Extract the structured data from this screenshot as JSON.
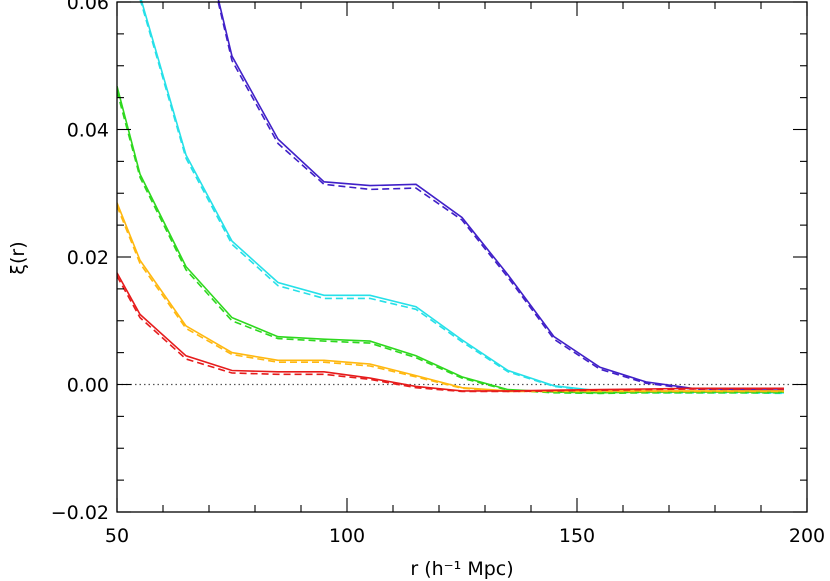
{
  "chart_data": {
    "type": "line",
    "xlabel": "r (h⁻¹ Mpc)",
    "ylabel": "ξ(r)",
    "xlim": [
      50,
      200
    ],
    "ylim": [
      -0.02,
      0.06
    ],
    "x_ticks": [
      50,
      100,
      150,
      200
    ],
    "x_tick_labels": [
      "50",
      "100",
      "150",
      "200"
    ],
    "y_ticks": [
      -0.02,
      0.0,
      0.02,
      0.04,
      0.06
    ],
    "y_tick_labels": [
      "−0.02",
      "0.00",
      "0.02",
      "0.04",
      "0.06"
    ],
    "grid": false,
    "zero_line": {
      "y": 0.0,
      "style": "dotted",
      "color": "#555555"
    },
    "series": [
      {
        "color": "#4020c8",
        "x": [
          72,
          75,
          85,
          95,
          105,
          115,
          125,
          135,
          145,
          155,
          165,
          175,
          185,
          195
        ],
        "solid": [
          0.0605,
          0.0515,
          0.0385,
          0.0318,
          0.0312,
          0.0314,
          0.0262,
          0.0172,
          0.0075,
          0.0027,
          0.0004,
          -0.0006,
          -0.0008,
          -0.0009
        ],
        "dashed": [
          0.06,
          0.0508,
          0.0378,
          0.0314,
          0.0306,
          0.0308,
          0.0258,
          0.0168,
          0.0071,
          0.0024,
          0.0002,
          -0.0007,
          -0.0009,
          -0.0011
        ]
      },
      {
        "color": "#26e0e8",
        "x": [
          55,
          65,
          75,
          85,
          95,
          105,
          115,
          125,
          135,
          145,
          155,
          165,
          175,
          185,
          195
        ],
        "solid": [
          0.061,
          0.036,
          0.0225,
          0.016,
          0.014,
          0.014,
          0.0122,
          0.007,
          0.0022,
          -0.0002,
          -0.001,
          -0.0012,
          -0.0012,
          -0.0012,
          -0.0013
        ],
        "dashed": [
          0.0605,
          0.0355,
          0.022,
          0.0155,
          0.0135,
          0.0135,
          0.0118,
          0.0067,
          0.002,
          -0.0003,
          -0.0011,
          -0.0013,
          -0.0013,
          -0.0013,
          -0.0014
        ]
      },
      {
        "color": "#2ed81e",
        "x": [
          50,
          55,
          65,
          75,
          85,
          95,
          105,
          115,
          125,
          135,
          145,
          155,
          165,
          175,
          185,
          195
        ],
        "solid": [
          0.0468,
          0.033,
          0.0185,
          0.0105,
          0.0075,
          0.0071,
          0.0068,
          0.0045,
          0.0012,
          -0.0008,
          -0.0012,
          -0.0013,
          -0.0012,
          -0.0012,
          -0.0012,
          -0.0012
        ],
        "dashed": [
          0.046,
          0.0325,
          0.018,
          0.01,
          0.0072,
          0.0068,
          0.0065,
          0.0042,
          0.001,
          -0.0009,
          -0.0013,
          -0.0014,
          -0.0013,
          -0.0013,
          -0.0013,
          -0.0013
        ]
      },
      {
        "color": "#ffb810",
        "x": [
          50,
          55,
          65,
          75,
          85,
          95,
          105,
          115,
          125,
          135,
          145,
          155,
          165,
          175,
          185,
          195
        ],
        "solid": [
          0.0285,
          0.0195,
          0.0092,
          0.005,
          0.0038,
          0.0038,
          0.0032,
          0.0014,
          -0.0005,
          -0.001,
          -0.001,
          -0.001,
          -0.001,
          -0.001,
          -0.001,
          -0.001
        ],
        "dashed": [
          0.028,
          0.019,
          0.0088,
          0.0047,
          0.0035,
          0.0035,
          0.0029,
          0.0012,
          -0.0006,
          -0.0011,
          -0.0011,
          -0.0011,
          -0.0011,
          -0.0011,
          -0.0011,
          -0.0011
        ]
      },
      {
        "color": "#e61c1c",
        "x": [
          50,
          55,
          65,
          75,
          85,
          95,
          105,
          115,
          125,
          135,
          145,
          155,
          165,
          175,
          185,
          195
        ],
        "solid": [
          0.0175,
          0.011,
          0.0045,
          0.0022,
          0.002,
          0.002,
          0.001,
          -0.0003,
          -0.001,
          -0.001,
          -0.0009,
          -0.0008,
          -0.0007,
          -0.0006,
          -0.0006,
          -0.0006
        ],
        "dashed": [
          0.017,
          0.0105,
          0.004,
          0.0018,
          0.0016,
          0.0016,
          0.0008,
          -0.0005,
          -0.0011,
          -0.0011,
          -0.001,
          -0.0009,
          -0.0008,
          -0.0007,
          -0.0007,
          -0.0007
        ]
      }
    ]
  }
}
